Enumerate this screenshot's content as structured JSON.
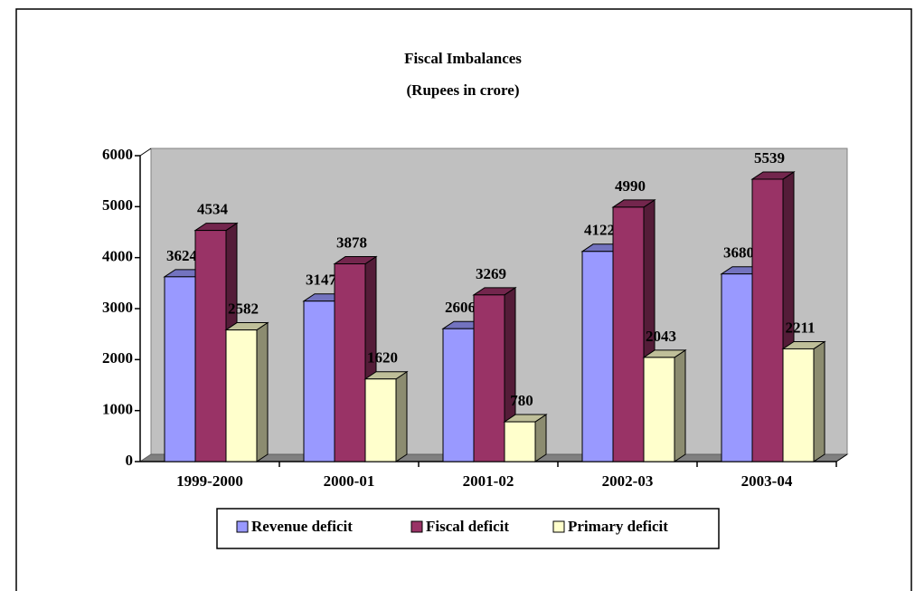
{
  "chart_data": {
    "type": "bar3d",
    "title": "Fiscal Imbalances",
    "subtitle": "(Rupees in crore)",
    "categories": [
      "1999-2000",
      "2000-01",
      "2001-02",
      "2002-03",
      "2003-04"
    ],
    "series": [
      {
        "name": "Revenue deficit",
        "color": "#9999ff",
        "values": [
          3624,
          3147,
          2606,
          4122,
          3680
        ]
      },
      {
        "name": "Fiscal deficit",
        "color": "#993366",
        "values": [
          4534,
          3878,
          3269,
          4990,
          5539
        ]
      },
      {
        "name": "Primary deficit",
        "color": "#ffffcc",
        "values": [
          2582,
          1620,
          780,
          2043,
          2211
        ]
      }
    ],
    "ylim": [
      0,
      6000
    ],
    "yticks": [
      0,
      1000,
      2000,
      3000,
      4000,
      5000,
      6000
    ]
  }
}
